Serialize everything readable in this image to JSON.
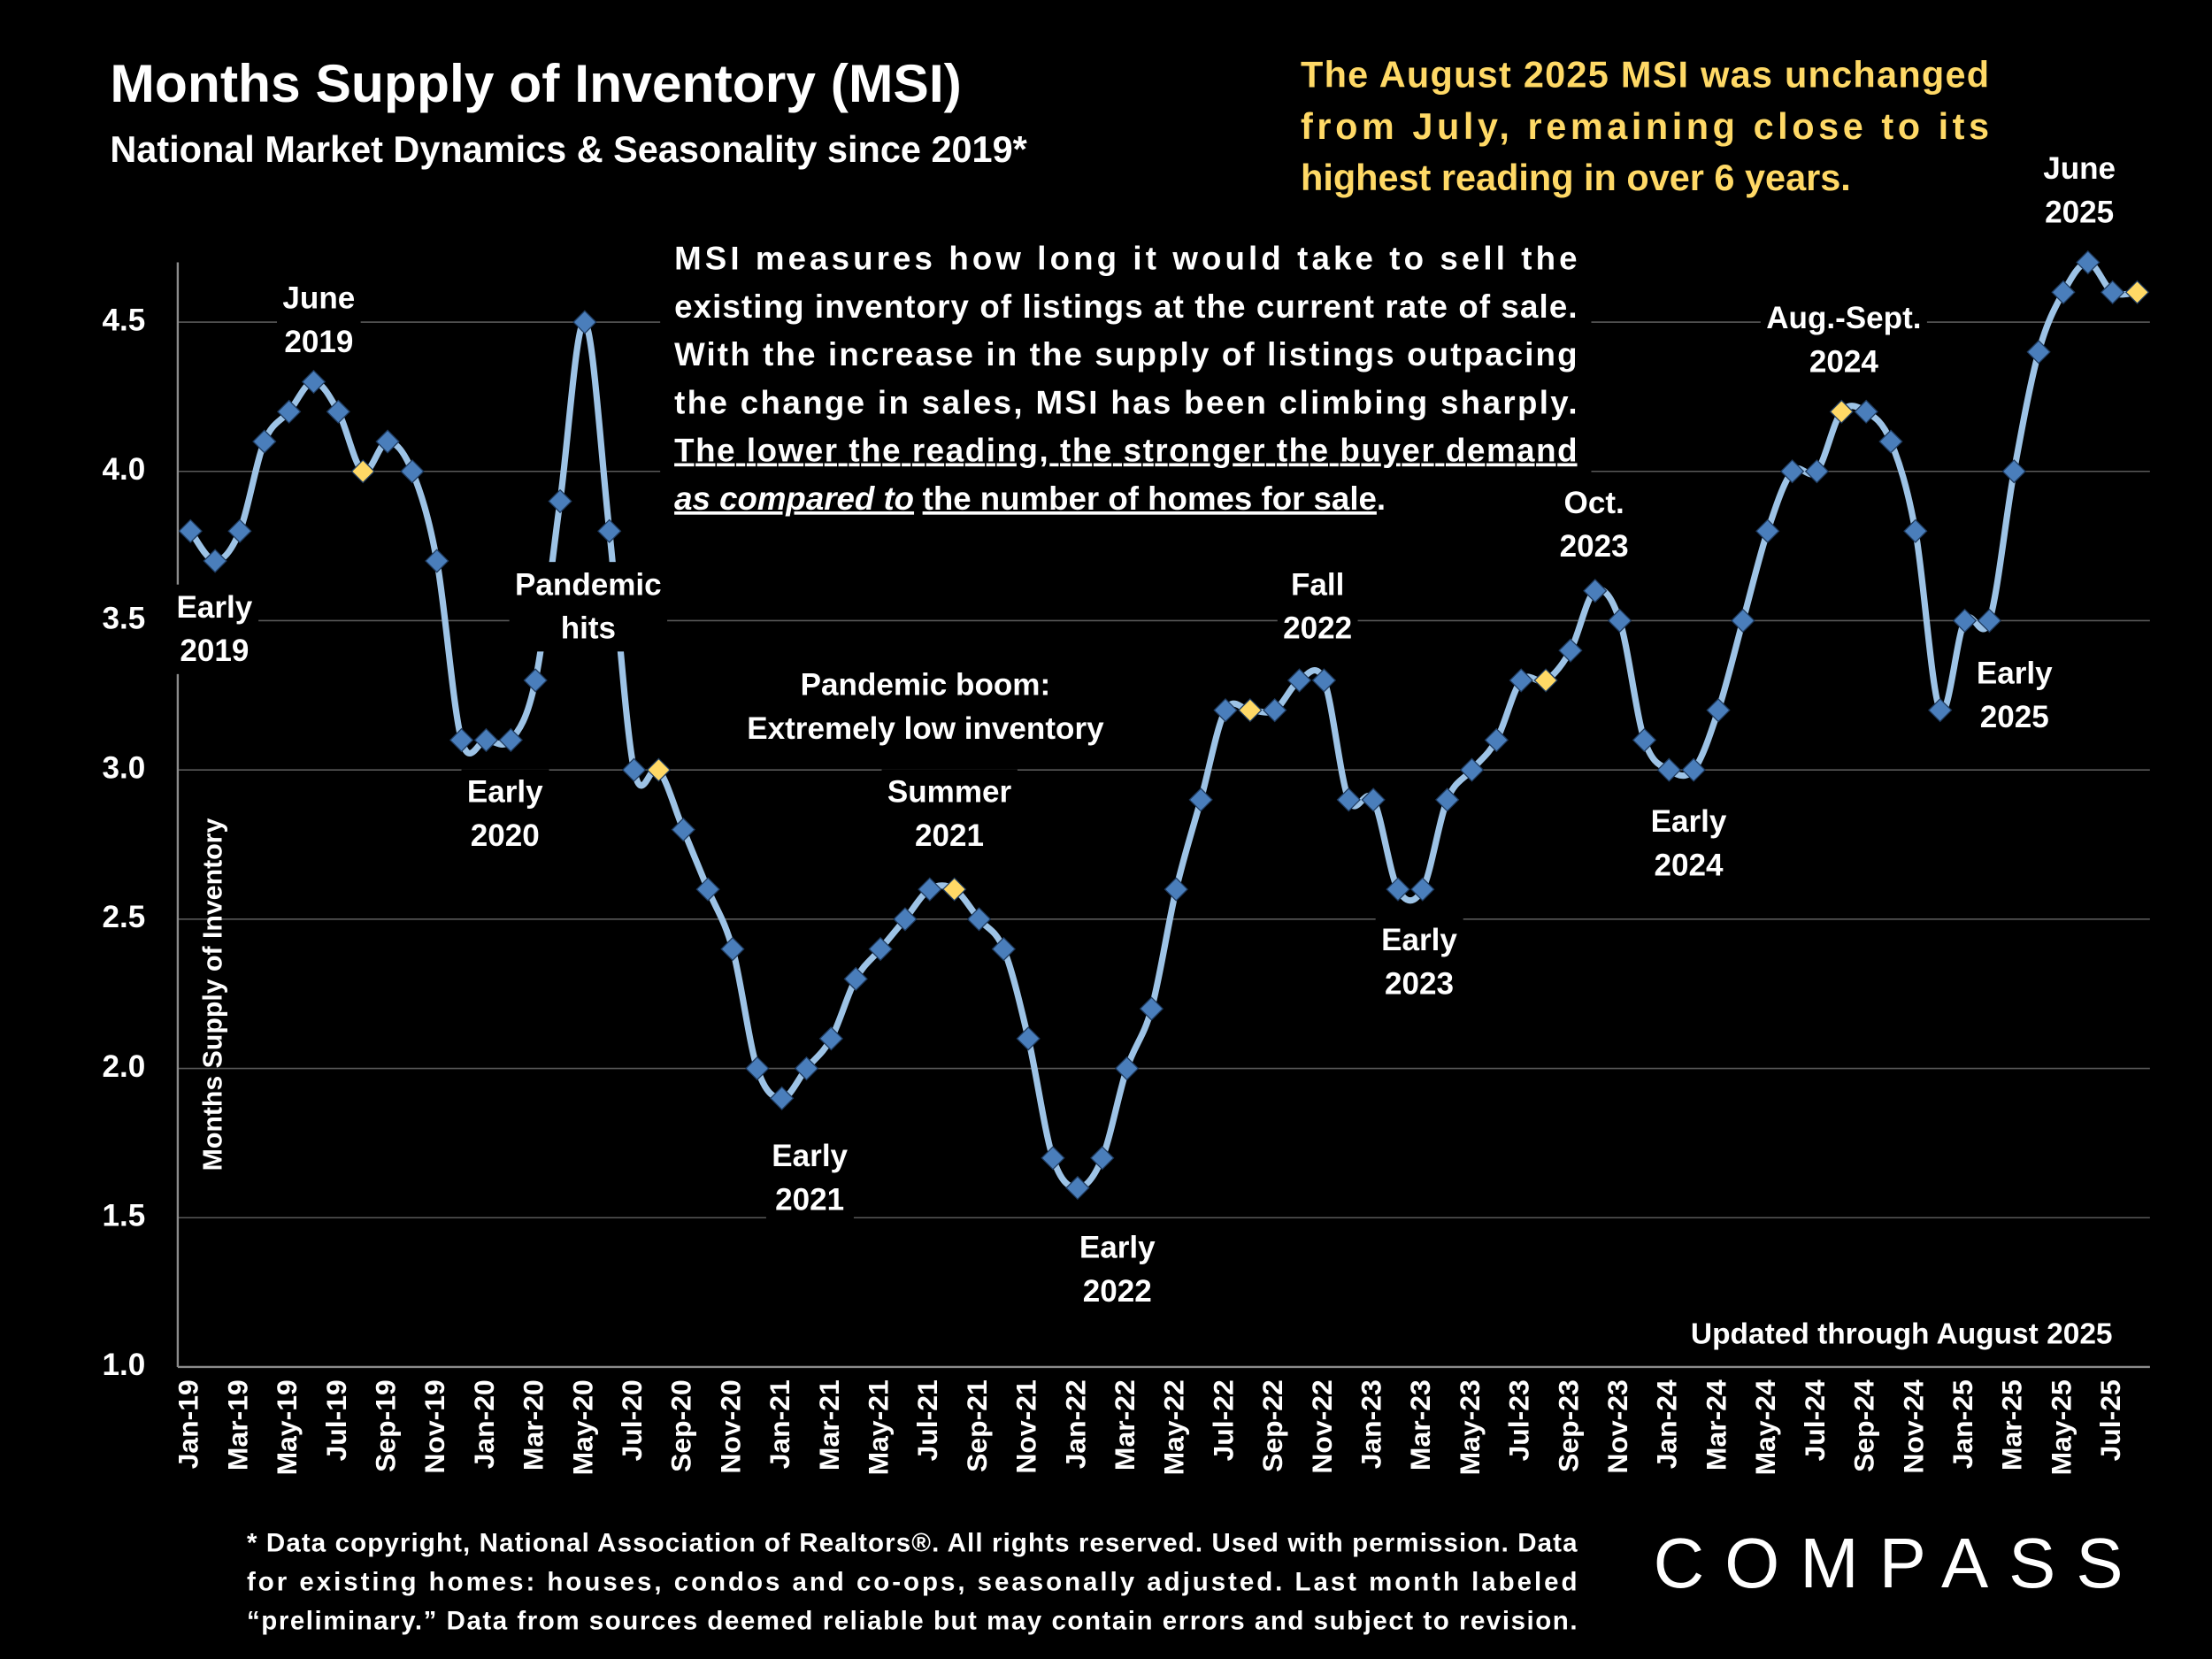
{
  "chart_data": {
    "type": "line",
    "title": "Months Supply of Inventory (MSI)",
    "subtitle": "National Market Dynamics & Seasonality since 2019*",
    "y_label": "Months Supply of Inventory",
    "callout": [
      "The August 2025 MSI was unchanged",
      "from July, remaining close to its",
      "highest reading in over 6 years."
    ],
    "note": {
      "lines": [
        "MSI measures how long it would take to sell the",
        "existing inventory of listings at the current rate of sale.",
        "With the increase in the supply of listings outpacing",
        "the change in sales, MSI has been climbing sharply.",
        "The lower the reading, the stronger the buyer demand"
      ],
      "last_line": [
        "as compared to",
        "the number of homes for sale",
        "."
      ]
    },
    "updated": "Updated through August 2025",
    "footnote": [
      "* Data copyright, National Association of Realtors®. All rights reserved. Used with permission. Data",
      "for existing homes: houses, condos and co-ops, seasonally adjusted. Last month labeled",
      "“preliminary.” Data from sources deemed reliable but may contain errors and subject to revision."
    ],
    "brand": "COMPASS",
    "categories": [
      "Jan-19",
      null,
      "Mar-19",
      null,
      "May-19",
      null,
      "Jul-19",
      null,
      "Sep-19",
      null,
      "Nov-19",
      null,
      "Jan-20",
      null,
      "Mar-20",
      null,
      "May-20",
      null,
      "Jul-20",
      null,
      "Sep-20",
      null,
      "Nov-20",
      null,
      "Jan-21",
      null,
      "Mar-21",
      null,
      "May-21",
      null,
      "Jul-21",
      null,
      "Sep-21",
      null,
      "Nov-21",
      null,
      "Jan-22",
      null,
      "Mar-22",
      null,
      "May-22",
      null,
      "Jul-22",
      null,
      "Sep-22",
      null,
      "Nov-22",
      null,
      "Jan-23",
      null,
      "Mar-23",
      null,
      "May-23",
      null,
      "Jul-23",
      null,
      "Sep-23",
      null,
      "Nov-23",
      null,
      "Jan-24",
      null,
      "Mar-24",
      null,
      "May-24",
      null,
      "Jul-24",
      null,
      "Sep-24",
      null,
      "Nov-24",
      null,
      "Jan-25",
      null,
      "Mar-25",
      null,
      "May-25",
      null,
      "Jul-25",
      null
    ],
    "values": [
      3.8,
      3.7,
      3.8,
      4.1,
      4.2,
      4.3,
      4.2,
      4.0,
      4.1,
      4.0,
      3.7,
      3.1,
      3.1,
      3.1,
      3.3,
      3.9,
      4.5,
      3.8,
      3.0,
      3.0,
      2.8,
      2.6,
      2.4,
      2.0,
      1.9,
      2.0,
      2.1,
      2.3,
      2.4,
      2.5,
      2.6,
      2.6,
      2.5,
      2.4,
      2.1,
      1.7,
      1.6,
      1.7,
      2.0,
      2.2,
      2.6,
      2.9,
      3.2,
      3.2,
      3.2,
      3.3,
      3.3,
      2.9,
      2.9,
      2.6,
      2.6,
      2.9,
      3.0,
      3.1,
      3.3,
      3.3,
      3.4,
      3.6,
      3.5,
      3.1,
      3.0,
      3.0,
      3.2,
      3.5,
      3.8,
      4.0,
      4.0,
      4.2,
      4.2,
      4.1,
      3.8,
      3.2,
      3.5,
      3.5,
      4.0,
      4.4,
      4.6,
      4.7,
      4.6,
      4.6
    ],
    "line_color": "#9dc3e6",
    "marker_colors": [
      "#4a7ebb",
      "#4a7ebb",
      "#4a7ebb",
      "#4a7ebb",
      "#4a7ebb",
      "#4a7ebb",
      "#4a7ebb",
      "#ffd966",
      "#4a7ebb",
      "#4a7ebb",
      "#4a7ebb",
      "#4a7ebb",
      "#4a7ebb",
      "#4a7ebb",
      "#4a7ebb",
      "#4a7ebb",
      "#4a7ebb",
      "#4a7ebb",
      "#4a7ebb",
      "#ffd966",
      "#4a7ebb",
      "#4a7ebb",
      "#4a7ebb",
      "#4a7ebb",
      "#4a7ebb",
      "#4a7ebb",
      "#4a7ebb",
      "#4a7ebb",
      "#4a7ebb",
      "#4a7ebb",
      "#4a7ebb",
      "#ffd966",
      "#4a7ebb",
      "#4a7ebb",
      "#4a7ebb",
      "#4a7ebb",
      "#4a7ebb",
      "#4a7ebb",
      "#4a7ebb",
      "#4a7ebb",
      "#4a7ebb",
      "#4a7ebb",
      "#4a7ebb",
      "#ffd966",
      "#4a7ebb",
      "#4a7ebb",
      "#4a7ebb",
      "#4a7ebb",
      "#4a7ebb",
      "#4a7ebb",
      "#4a7ebb",
      "#4a7ebb",
      "#4a7ebb",
      "#4a7ebb",
      "#4a7ebb",
      "#ffd966",
      "#4a7ebb",
      "#4a7ebb",
      "#4a7ebb",
      "#4a7ebb",
      "#4a7ebb",
      "#4a7ebb",
      "#4a7ebb",
      "#4a7ebb",
      "#4a7ebb",
      "#4a7ebb",
      "#4a7ebb",
      "#ffd966",
      "#4a7ebb",
      "#4a7ebb",
      "#4a7ebb",
      "#4a7ebb",
      "#4a7ebb",
      "#4a7ebb",
      "#4a7ebb",
      "#4a7ebb",
      "#4a7ebb",
      "#4a7ebb",
      "#4a7ebb",
      "#ffd966"
    ],
    "ylim": [
      1.0,
      4.7
    ],
    "yticks": [
      {
        "value": 1.0,
        "label": "1.0"
      },
      1.5,
      {
        "value": 2.0,
        "label": "2.0"
      },
      2.5,
      {
        "value": 3.0,
        "label": "3.0"
      },
      3.5,
      {
        "value": 4.0,
        "label": "4.0"
      },
      4.5
    ],
    "grid": true,
    "annotations": [
      {
        "lines": [
          "Early",
          "2019"
        ]
      },
      {
        "lines": [
          "June",
          "2019"
        ]
      },
      {
        "lines": [
          "Pandemic",
          "hits"
        ]
      },
      {
        "lines": [
          "Early",
          "2020"
        ]
      },
      {
        "lines": [
          "Pandemic boom:",
          "Extremely low inventory"
        ]
      },
      {
        "lines": [
          "Summer",
          "2021"
        ]
      },
      {
        "lines": [
          "Early",
          "2021"
        ]
      },
      {
        "lines": [
          "Early",
          "2022"
        ]
      },
      {
        "lines": [
          "Fall",
          "2022"
        ]
      },
      {
        "lines": [
          "Early",
          "2023"
        ]
      },
      {
        "lines": [
          "Oct.",
          "2023"
        ]
      },
      {
        "lines": [
          "Early",
          "2024"
        ]
      },
      {
        "lines": [
          "Aug.-Sept.",
          "2024"
        ]
      },
      {
        "lines": [
          "Early",
          "2025"
        ]
      },
      {
        "lines": [
          "June",
          "2025"
        ]
      }
    ]
  }
}
